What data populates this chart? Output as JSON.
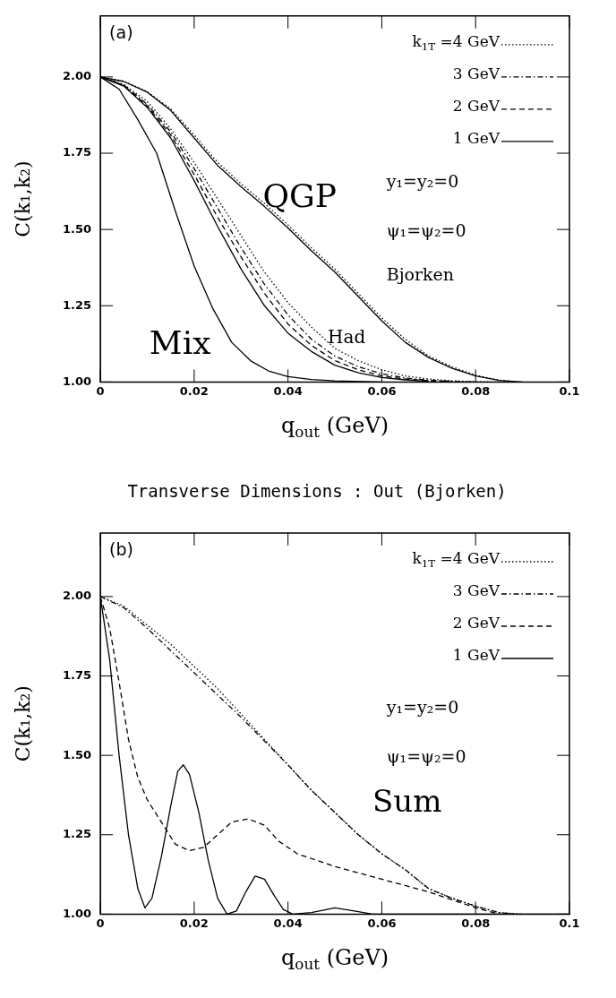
{
  "chart_data": [
    {
      "type": "line",
      "subtitle": "(a)",
      "xlabel": "q$_{out}$ (GeV)",
      "ylabel": "C(k₁,k₂)",
      "xlim": [
        0,
        0.1
      ],
      "ylim": [
        1,
        2.2
      ],
      "xticks": [
        0,
        0.02,
        0.04,
        0.06,
        0.08,
        0.1
      ],
      "yticks": [
        {
          "value": 1,
          "label": "1.00"
        },
        {
          "value": 1.25,
          "label": "1.25"
        },
        {
          "value": 1.5,
          "label": "1.50"
        },
        {
          "value": 1.75,
          "label": "1.75"
        },
        {
          "value": 2,
          "label": "2.00"
        }
      ],
      "legend": "top right",
      "series": [
        {
          "name": "k$_{1T}$ =4 GeV",
          "color": "#000000",
          "line_style": "dotted",
          "x": [
            0,
            0.005,
            0.01,
            0.015,
            0.02,
            0.025,
            0.03,
            0.035,
            0.04,
            0.045,
            0.05,
            0.055,
            0.06,
            0.065,
            0.07,
            0.075,
            0.08,
            0.085
          ],
          "values": [
            2.0,
            1.975,
            1.92,
            1.83,
            1.72,
            1.6,
            1.48,
            1.36,
            1.26,
            1.18,
            1.11,
            1.07,
            1.04,
            1.02,
            1.01,
            1.004,
            1.001,
            1.0
          ]
        },
        {
          "name": "3 GeV",
          "color": "#000000",
          "line_style": "dashdot",
          "x": [
            0,
            0.005,
            0.01,
            0.015,
            0.02,
            0.025,
            0.03,
            0.035,
            0.04,
            0.045,
            0.05,
            0.055,
            0.06,
            0.065,
            0.07,
            0.075,
            0.08
          ],
          "values": [
            2.0,
            1.974,
            1.91,
            1.82,
            1.7,
            1.57,
            1.44,
            1.32,
            1.22,
            1.14,
            1.085,
            1.05,
            1.027,
            1.013,
            1.006,
            1.002,
            1.0
          ]
        },
        {
          "name": "2 GeV",
          "color": "#000000",
          "line_style": "dashed",
          "x": [
            0,
            0.005,
            0.01,
            0.015,
            0.02,
            0.025,
            0.03,
            0.035,
            0.04,
            0.045,
            0.05,
            0.055,
            0.06,
            0.065,
            0.07,
            0.075
          ],
          "values": [
            2.0,
            1.972,
            1.905,
            1.81,
            1.68,
            1.54,
            1.41,
            1.29,
            1.19,
            1.12,
            1.07,
            1.04,
            1.02,
            1.01,
            1.004,
            1.001
          ]
        },
        {
          "name": "1 GeV",
          "color": "#000000",
          "line_style": "solid",
          "x": [
            0,
            0.005,
            0.01,
            0.015,
            0.02,
            0.025,
            0.03,
            0.035,
            0.04,
            0.045,
            0.05,
            0.055,
            0.06,
            0.065,
            0.07
          ],
          "values": [
            2.0,
            1.97,
            1.9,
            1.8,
            1.66,
            1.51,
            1.37,
            1.25,
            1.16,
            1.1,
            1.055,
            1.03,
            1.015,
            1.007,
            1.002
          ]
        },
        {
          "color": "#000000",
          "line_style": "solid",
          "x": [
            0,
            0.005,
            0.01,
            0.015,
            0.02,
            0.025,
            0.03,
            0.035,
            0.04,
            0.045,
            0.05,
            0.055,
            0.06,
            0.065,
            0.07,
            0.075,
            0.08,
            0.085,
            0.09
          ],
          "values": [
            2.0,
            1.985,
            1.95,
            1.89,
            1.8,
            1.71,
            1.64,
            1.575,
            1.505,
            1.43,
            1.36,
            1.28,
            1.2,
            1.13,
            1.08,
            1.045,
            1.02,
            1.005,
            1.0
          ]
        },
        {
          "color": "#000000",
          "line_style": "dotted",
          "x": [
            0,
            0.005,
            0.01,
            0.015,
            0.02,
            0.025,
            0.03,
            0.035,
            0.04,
            0.045,
            0.05,
            0.055,
            0.06,
            0.065,
            0.07,
            0.075,
            0.08,
            0.085,
            0.088
          ],
          "values": [
            2.0,
            1.986,
            1.952,
            1.895,
            1.81,
            1.72,
            1.65,
            1.585,
            1.515,
            1.44,
            1.37,
            1.29,
            1.21,
            1.14,
            1.085,
            1.05,
            1.022,
            1.006,
            1.001
          ]
        },
        {
          "color": "#000000",
          "line_style": "solid",
          "x": [
            0,
            0.004,
            0.008,
            0.012,
            0.016,
            0.02,
            0.024,
            0.028,
            0.032,
            0.036,
            0.04,
            0.045,
            0.05,
            0.06
          ],
          "values": [
            2.0,
            1.96,
            1.86,
            1.75,
            1.56,
            1.38,
            1.24,
            1.13,
            1.07,
            1.035,
            1.018,
            1.008,
            1.004,
            1.0
          ]
        }
      ],
      "annotations": [
        "QGP",
        "Mix",
        "Had",
        "y₁=y₂=0",
        "ψ₁=ψ₂=0",
        "Bjorken"
      ]
    },
    {
      "type": "line",
      "title": "Transverse Dimensions : Out (Bjorken)",
      "subtitle": "(b)",
      "xlabel": "q$_{out}$ (GeV)",
      "ylabel": "C(k₁,k₂)",
      "xlim": [
        0,
        0.1
      ],
      "ylim": [
        1,
        2.2
      ],
      "xticks": [
        0,
        0.02,
        0.04,
        0.06,
        0.08,
        0.1
      ],
      "yticks": [
        {
          "value": 1,
          "label": "1.00"
        },
        {
          "value": 1.25,
          "label": "1.25"
        },
        {
          "value": 1.5,
          "label": "1.50"
        },
        {
          "value": 1.75,
          "label": "1.75"
        },
        {
          "value": 2,
          "label": "2.00"
        }
      ],
      "legend": "top right",
      "series": [
        {
          "name": "k$_{1T}$ =4 GeV",
          "color": "#000000",
          "line_style": "dotted",
          "x": [
            0,
            0.005,
            0.01,
            0.015,
            0.02,
            0.025,
            0.03,
            0.035,
            0.04,
            0.045,
            0.05,
            0.055,
            0.06,
            0.065,
            0.07,
            0.075,
            0.08,
            0.085,
            0.09
          ],
          "values": [
            2.0,
            1.97,
            1.91,
            1.85,
            1.78,
            1.71,
            1.63,
            1.55,
            1.47,
            1.39,
            1.32,
            1.25,
            1.19,
            1.14,
            1.08,
            1.05,
            1.025,
            1.005,
            1.0
          ]
        },
        {
          "name": "3 GeV",
          "color": "#000000",
          "line_style": "dashdot",
          "x": [
            0,
            0.005,
            0.01,
            0.015,
            0.02,
            0.025,
            0.03,
            0.035,
            0.04,
            0.045,
            0.05,
            0.055,
            0.06,
            0.065,
            0.07,
            0.075,
            0.08,
            0.085,
            0.088
          ],
          "values": [
            2.0,
            1.965,
            1.9,
            1.83,
            1.76,
            1.69,
            1.62,
            1.545,
            1.47,
            1.39,
            1.32,
            1.25,
            1.19,
            1.14,
            1.08,
            1.05,
            1.025,
            1.005,
            1.001
          ]
        },
        {
          "name": "2 GeV",
          "color": "#000000",
          "line_style": "dashed",
          "x": [
            0,
            0.002,
            0.004,
            0.006,
            0.008,
            0.01,
            0.013,
            0.016,
            0.019,
            0.022,
            0.025,
            0.028,
            0.0315,
            0.035,
            0.038,
            0.042,
            0.046,
            0.05,
            0.055,
            0.06,
            0.065,
            0.07,
            0.075,
            0.08,
            0.085
          ],
          "values": [
            2.0,
            1.9,
            1.73,
            1.55,
            1.43,
            1.36,
            1.29,
            1.22,
            1.2,
            1.21,
            1.25,
            1.29,
            1.3,
            1.28,
            1.23,
            1.19,
            1.17,
            1.15,
            1.13,
            1.11,
            1.09,
            1.07,
            1.045,
            1.02,
            1.0
          ]
        },
        {
          "name": "1 GeV",
          "color": "#000000",
          "line_style": "solid",
          "x": [
            0,
            0.002,
            0.004,
            0.006,
            0.008,
            0.0095,
            0.011,
            0.013,
            0.015,
            0.0165,
            0.0177,
            0.019,
            0.021,
            0.023,
            0.025,
            0.027,
            0.029,
            0.031,
            0.033,
            0.035,
            0.037,
            0.039,
            0.041,
            0.045,
            0.05,
            0.055,
            0.058,
            0.07,
            0.1
          ],
          "values": [
            2.0,
            1.8,
            1.5,
            1.25,
            1.08,
            1.02,
            1.05,
            1.18,
            1.34,
            1.45,
            1.47,
            1.44,
            1.32,
            1.17,
            1.05,
            1.0,
            1.01,
            1.07,
            1.12,
            1.11,
            1.06,
            1.015,
            1.0,
            1.005,
            1.02,
            1.008,
            1.0,
            1.0,
            1.0
          ]
        }
      ],
      "annotations": [
        "y₁=y₂=0",
        "ψ₁=ψ₂=0",
        "Sum"
      ]
    }
  ]
}
